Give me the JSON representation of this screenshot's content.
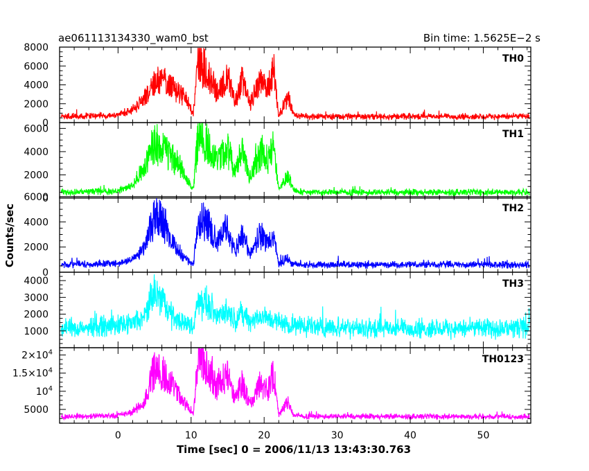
{
  "chart_data": {
    "type": "line",
    "title_left": "ae061113134330_wam0_bst",
    "title_right": "Bin time: 1.5625E−2 s",
    "xlabel": "Time [sec] 0 = 2006/11/13 13:43:30.763",
    "ylabel": "Counts/sec",
    "xlim": [
      -8,
      56.5
    ],
    "x_ticks": [
      {
        "value": 0,
        "label": "0"
      },
      {
        "value": 10,
        "label": "10"
      },
      {
        "value": 20,
        "label": "20"
      },
      {
        "value": 30,
        "label": "30"
      },
      {
        "value": 40,
        "label": "40"
      },
      {
        "value": 50,
        "label": "50"
      }
    ],
    "x_data_range": [
      -7.8,
      56.3
    ],
    "panels": [
      {
        "name": "TH0",
        "color": "#ff0000",
        "ylim": [
          0,
          8000
        ],
        "y_ticks": [
          {
            "value": 0,
            "label": "0",
            "sup": ""
          },
          {
            "value": 2000,
            "label": "2000",
            "sup": ""
          },
          {
            "value": 4000,
            "label": "4000",
            "sup": ""
          },
          {
            "value": 6000,
            "label": "6000",
            "sup": ""
          },
          {
            "value": 8000,
            "label": "8000",
            "sup": ""
          }
        ],
        "baseline": 650,
        "noise": 180,
        "profile": [
          [
            -7.8,
            650
          ],
          [
            0,
            800
          ],
          [
            2,
            1300
          ],
          [
            3.5,
            2500
          ],
          [
            5,
            4300
          ],
          [
            6,
            4200
          ],
          [
            7.5,
            3500
          ],
          [
            9,
            2700
          ],
          [
            10.3,
            1000
          ],
          [
            11,
            6600
          ],
          [
            12,
            5300
          ],
          [
            13.5,
            3200
          ],
          [
            15,
            4600
          ],
          [
            16,
            2200
          ],
          [
            17,
            4300
          ],
          [
            18,
            2000
          ],
          [
            19.5,
            4200
          ],
          [
            20.5,
            3500
          ],
          [
            21.3,
            5600
          ],
          [
            22,
            800
          ],
          [
            23.3,
            2600
          ],
          [
            24,
            900
          ],
          [
            25,
            650
          ],
          [
            56.3,
            650
          ]
        ]
      },
      {
        "name": "TH1",
        "color": "#00ff00",
        "ylim": [
          0,
          6500
        ],
        "y_ticks": [
          {
            "value": 0,
            "label": "0",
            "sup": ""
          },
          {
            "value": 2000,
            "label": "2000",
            "sup": ""
          },
          {
            "value": 4000,
            "label": "4000",
            "sup": ""
          },
          {
            "value": 6000,
            "label": "6000",
            "sup": ""
          }
        ],
        "baseline": 500,
        "noise": 150,
        "profile": [
          [
            -7.8,
            500
          ],
          [
            0,
            600
          ],
          [
            2,
            1100
          ],
          [
            3.5,
            2400
          ],
          [
            5,
            4700
          ],
          [
            6,
            4400
          ],
          [
            7.5,
            3300
          ],
          [
            9,
            2100
          ],
          [
            10.3,
            700
          ],
          [
            11,
            5400
          ],
          [
            12,
            4700
          ],
          [
            13.5,
            3000
          ],
          [
            15,
            4200
          ],
          [
            16,
            2000
          ],
          [
            17,
            3900
          ],
          [
            18,
            1800
          ],
          [
            19.5,
            3800
          ],
          [
            20.5,
            3000
          ],
          [
            21.3,
            4200
          ],
          [
            22,
            700
          ],
          [
            23.3,
            2000
          ],
          [
            24,
            700
          ],
          [
            25,
            500
          ],
          [
            56.3,
            500
          ]
        ]
      },
      {
        "name": "TH2",
        "color": "#0000ff",
        "ylim": [
          0,
          6000
        ],
        "y_ticks": [
          {
            "value": 0,
            "label": "0",
            "sup": ""
          },
          {
            "value": 2000,
            "label": "2000",
            "sup": ""
          },
          {
            "value": 4000,
            "label": "4000",
            "sup": ""
          },
          {
            "value": 6000,
            "label": "6000",
            "sup": ""
          }
        ],
        "baseline": 600,
        "noise": 150,
        "profile": [
          [
            -7.8,
            600
          ],
          [
            0,
            700
          ],
          [
            2,
            1000
          ],
          [
            3.5,
            1900
          ],
          [
            5,
            4300
          ],
          [
            6,
            4200
          ],
          [
            7.5,
            2200
          ],
          [
            9,
            1200
          ],
          [
            10.3,
            600
          ],
          [
            11,
            4300
          ],
          [
            12,
            3900
          ],
          [
            13.5,
            2500
          ],
          [
            15,
            3300
          ],
          [
            16,
            1500
          ],
          [
            17,
            3100
          ],
          [
            18,
            1300
          ],
          [
            19.5,
            2900
          ],
          [
            20.5,
            2300
          ],
          [
            21.3,
            2600
          ],
          [
            22,
            600
          ],
          [
            23.3,
            1000
          ],
          [
            24,
            600
          ],
          [
            56.3,
            600
          ]
        ]
      },
      {
        "name": "TH3",
        "color": "#00ffff",
        "ylim": [
          0,
          4500
        ],
        "y_ticks": [
          {
            "value": 1000,
            "label": "1000",
            "sup": ""
          },
          {
            "value": 2000,
            "label": "2000",
            "sup": ""
          },
          {
            "value": 3000,
            "label": "3000",
            "sup": ""
          },
          {
            "value": 4000,
            "label": "4000",
            "sup": ""
          }
        ],
        "baseline": 1150,
        "noise": 320,
        "profile": [
          [
            -7.8,
            1150
          ],
          [
            0,
            1300
          ],
          [
            2,
            1450
          ],
          [
            3.5,
            1700
          ],
          [
            5,
            3200
          ],
          [
            6,
            2800
          ],
          [
            7.5,
            1800
          ],
          [
            9,
            1500
          ],
          [
            10.3,
            1200
          ],
          [
            11,
            2900
          ],
          [
            12,
            2600
          ],
          [
            13.5,
            1900
          ],
          [
            15,
            2100
          ],
          [
            16,
            1700
          ],
          [
            17,
            2000
          ],
          [
            18,
            1600
          ],
          [
            19.5,
            1800
          ],
          [
            21,
            1700
          ],
          [
            22,
            1500
          ],
          [
            25,
            1250
          ],
          [
            35,
            1150
          ],
          [
            56.3,
            1150
          ]
        ]
      },
      {
        "name": "TH0123",
        "color": "#ff00ff",
        "ylim": [
          1200,
          22000
        ],
        "y_ticks": [
          {
            "value": 5000,
            "label": "5000",
            "sup": ""
          },
          {
            "value": 10000,
            "label": "10",
            "sup": "4"
          },
          {
            "value": 15000,
            "label": "1.5×10",
            "sup": "4"
          },
          {
            "value": 20000,
            "label": "2×10",
            "sup": "4"
          }
        ],
        "baseline": 3000,
        "noise": 400,
        "profile": [
          [
            -7.8,
            3000
          ],
          [
            0,
            3300
          ],
          [
            2,
            4200
          ],
          [
            3.5,
            6500
          ],
          [
            5,
            15500
          ],
          [
            6,
            14800
          ],
          [
            7.5,
            11000
          ],
          [
            9,
            7000
          ],
          [
            10.3,
            3400
          ],
          [
            11,
            18500
          ],
          [
            12,
            16500
          ],
          [
            13.5,
            11000
          ],
          [
            15,
            13500
          ],
          [
            16,
            7500
          ],
          [
            17,
            12500
          ],
          [
            18,
            6500
          ],
          [
            19.5,
            12000
          ],
          [
            20.5,
            10000
          ],
          [
            21.3,
            14000
          ],
          [
            22,
            3500
          ],
          [
            23.3,
            7000
          ],
          [
            24,
            3400
          ],
          [
            25,
            3100
          ],
          [
            56.3,
            3000
          ]
        ]
      }
    ]
  }
}
